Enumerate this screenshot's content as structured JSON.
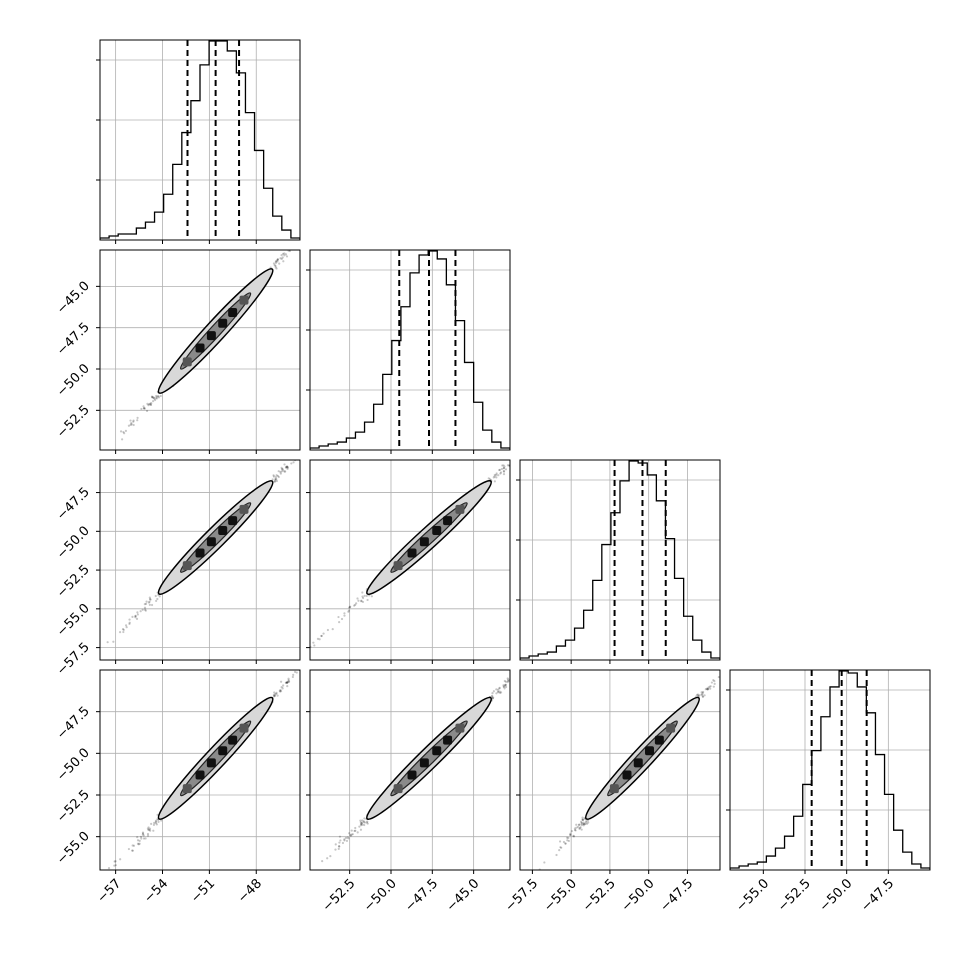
{
  "chart_data": {
    "type": "scatter",
    "subtype": "corner-plot",
    "grid": true,
    "n_params": 4,
    "params": [
      {
        "ticks": [
          -57,
          -54,
          -51,
          -48
        ],
        "tick_labels": [
          "−57",
          "−54",
          "−51",
          "−48"
        ],
        "range": [
          -58.0,
          -45.2
        ]
      },
      {
        "ticks": [
          -52.5,
          -50.0,
          -47.5,
          -45.0
        ],
        "tick_labels": [
          "−52.5",
          "−50.0",
          "−47.5",
          "−45.0"
        ],
        "range": [
          -54.9,
          -42.8
        ]
      },
      {
        "ticks": [
          -57.5,
          -55.0,
          -52.5,
          -50.0,
          -47.5
        ],
        "tick_labels": [
          "−57.5",
          "−55.0",
          "−52.5",
          "−50.0",
          "−47.5"
        ],
        "range": [
          -58.3,
          -45.4
        ]
      },
      {
        "ticks": [
          -55.0,
          -52.5,
          -50.0,
          -47.5
        ],
        "tick_labels": [
          "−55.0",
          "−52.5",
          "−50.0",
          "−47.5"
        ],
        "range": [
          -57.0,
          -45.0
        ]
      }
    ],
    "quantiles": [
      [
        -52.4,
        -50.6,
        -49.1
      ],
      [
        -49.5,
        -47.7,
        -46.1
      ],
      [
        -52.2,
        -50.4,
        -48.9
      ],
      [
        -52.1,
        -50.3,
        -48.8
      ]
    ],
    "histograms": [
      {
        "counts": [
          1,
          2,
          3,
          3,
          6,
          9,
          14,
          23,
          38,
          54,
          70,
          88,
          100,
          100,
          95,
          84,
          64,
          45,
          26,
          12,
          5,
          1
        ]
      },
      {
        "counts": [
          1,
          2,
          3,
          4,
          6,
          9,
          14,
          23,
          38,
          55,
          72,
          89,
          98,
          100,
          96,
          83,
          65,
          44,
          24,
          10,
          4,
          1
        ]
      },
      {
        "counts": [
          1,
          2,
          3,
          4,
          7,
          10,
          16,
          25,
          40,
          58,
          74,
          90,
          100,
          99,
          93,
          80,
          61,
          41,
          22,
          10,
          4,
          1
        ]
      },
      {
        "counts": [
          1,
          2,
          3,
          4,
          7,
          11,
          17,
          27,
          43,
          60,
          77,
          92,
          100,
          99,
          92,
          79,
          58,
          38,
          20,
          9,
          3,
          1
        ]
      }
    ]
  }
}
